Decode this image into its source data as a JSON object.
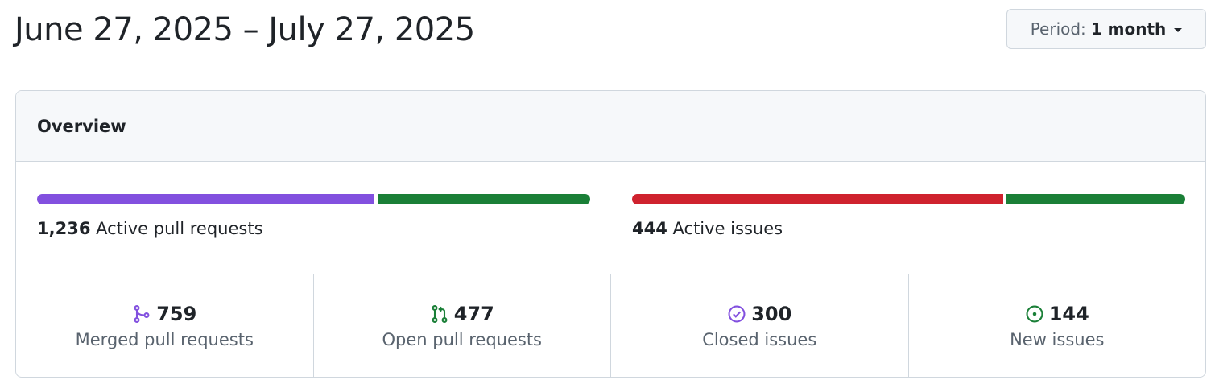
{
  "header": {
    "date_range": "June 27, 2025 – July 27, 2025",
    "period_prefix": "Period:",
    "period_value": "1 month"
  },
  "overview": {
    "title": "Overview",
    "pull_requests": {
      "count": "1,236",
      "label": "Active pull requests",
      "bar": [
        {
          "name": "merged",
          "value": 759,
          "color": "#8250df"
        },
        {
          "name": "open",
          "value": 477,
          "color": "#1a7f37"
        }
      ]
    },
    "issues": {
      "count": "444",
      "label": "Active issues",
      "bar": [
        {
          "name": "closed",
          "value": 300,
          "color": "#cf222e"
        },
        {
          "name": "new",
          "value": 144,
          "color": "#1a7f37"
        }
      ]
    },
    "stats": [
      {
        "count": "759",
        "label": "Merged pull requests",
        "icon": "git-merge-icon",
        "color": "#8250df"
      },
      {
        "count": "477",
        "label": "Open pull requests",
        "icon": "git-pull-request-icon",
        "color": "#1a7f37"
      },
      {
        "count": "300",
        "label": "Closed issues",
        "icon": "issue-closed-icon",
        "color": "#8250df"
      },
      {
        "count": "144",
        "label": "New issues",
        "icon": "issue-opened-icon",
        "color": "#1a7f37"
      }
    ]
  }
}
